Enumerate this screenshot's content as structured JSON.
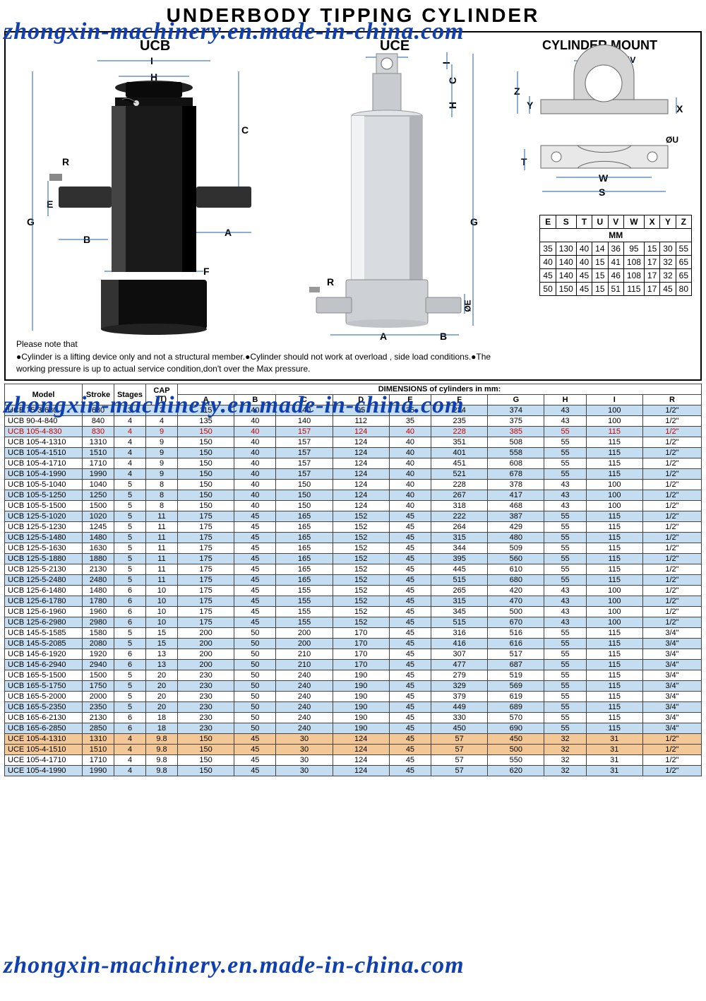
{
  "title": "UNDERBODY TIPPING CYLINDER",
  "watermark": "zhongxin-machinery.en.made-in-china.com",
  "labels": {
    "ucb": "UCB",
    "uce": "UCE",
    "mount": "CYLINDER MOUNT"
  },
  "dims": {
    "A": "A",
    "B": "B",
    "C": "C",
    "D": "D",
    "E": "E",
    "F": "F",
    "G": "G",
    "H": "H",
    "I": "I",
    "R": "R",
    "S": "S",
    "T": "T",
    "U": "U",
    "V": "V",
    "W": "W",
    "X": "X",
    "Y": "Y",
    "Z": "Z",
    "oE": "ØE",
    "oU": "ØU",
    "oV": "ØV"
  },
  "mountHeaders": [
    "E",
    "S",
    "T",
    "U",
    "V",
    "W",
    "X",
    "Y",
    "Z"
  ],
  "mountUnit": "MM",
  "mountRows": [
    [
      "35",
      "130",
      "40",
      "14",
      "36",
      "95",
      "15",
      "30",
      "55"
    ],
    [
      "40",
      "140",
      "40",
      "15",
      "41",
      "108",
      "17",
      "32",
      "65"
    ],
    [
      "45",
      "140",
      "45",
      "15",
      "46",
      "108",
      "17",
      "32",
      "65"
    ],
    [
      "50",
      "150",
      "45",
      "15",
      "51",
      "115",
      "17",
      "45",
      "80"
    ]
  ],
  "noteHead": "Please note that",
  "noteBody": "●Cylinder is a lifting device only and not a structural member.●Cylinder should not work at overload , side load conditions.●The working pressure is up to actual service condition,don't over the Max pressure.",
  "specHeaders1": [
    "Model",
    "Stroke",
    "Stages",
    "CAP (T)"
  ],
  "specDimHeader": "DIMENSIONS of cylinders in mm:",
  "specHeaders2": [
    "A",
    "B",
    "C",
    "D",
    "E",
    "F",
    "G",
    "H",
    "I",
    "R"
  ],
  "rows": [
    {
      "c": "blue",
      "d": [
        "UCB 75-3-630",
        "630",
        "3",
        "3",
        "115",
        "40",
        "140",
        "95",
        "35",
        "234",
        "374",
        "43",
        "100",
        "1/2\""
      ]
    },
    {
      "c": "white",
      "d": [
        "UCB 90-4-840",
        "840",
        "4",
        "4",
        "135",
        "40",
        "140",
        "112",
        "35",
        "235",
        "375",
        "43",
        "100",
        "1/2\""
      ]
    },
    {
      "c": "red",
      "d": [
        "UCB 105-4-830",
        "830",
        "4",
        "9",
        "150",
        "40",
        "157",
        "124",
        "40",
        "228",
        "385",
        "55",
        "115",
        "1/2\""
      ]
    },
    {
      "c": "white",
      "d": [
        "UCB 105-4-1310",
        "1310",
        "4",
        "9",
        "150",
        "40",
        "157",
        "124",
        "40",
        "351",
        "508",
        "55",
        "115",
        "1/2\""
      ]
    },
    {
      "c": "blue",
      "d": [
        "UCB 105-4-1510",
        "1510",
        "4",
        "9",
        "150",
        "40",
        "157",
        "124",
        "40",
        "401",
        "558",
        "55",
        "115",
        "1/2\""
      ]
    },
    {
      "c": "white",
      "d": [
        "UCB 105-4-1710",
        "1710",
        "4",
        "9",
        "150",
        "40",
        "157",
        "124",
        "40",
        "451",
        "608",
        "55",
        "115",
        "1/2\""
      ]
    },
    {
      "c": "blue",
      "d": [
        "UCB 105-4-1990",
        "1990",
        "4",
        "9",
        "150",
        "40",
        "157",
        "124",
        "40",
        "521",
        "678",
        "55",
        "115",
        "1/2\""
      ]
    },
    {
      "c": "white",
      "d": [
        "UCB 105-5-1040",
        "1040",
        "5",
        "8",
        "150",
        "40",
        "150",
        "124",
        "40",
        "228",
        "378",
        "43",
        "100",
        "1/2\""
      ]
    },
    {
      "c": "blue",
      "d": [
        "UCB 105-5-1250",
        "1250",
        "5",
        "8",
        "150",
        "40",
        "150",
        "124",
        "40",
        "267",
        "417",
        "43",
        "100",
        "1/2\""
      ]
    },
    {
      "c": "white",
      "d": [
        "UCB 105-5-1500",
        "1500",
        "5",
        "8",
        "150",
        "40",
        "150",
        "124",
        "40",
        "318",
        "468",
        "43",
        "100",
        "1/2\""
      ]
    },
    {
      "c": "blue",
      "d": [
        "UCB 125-5-1020",
        "1020",
        "5",
        "11",
        "175",
        "45",
        "165",
        "152",
        "45",
        "222",
        "387",
        "55",
        "115",
        "1/2\""
      ]
    },
    {
      "c": "white",
      "d": [
        "UCB 125-5-1230",
        "1245",
        "5",
        "11",
        "175",
        "45",
        "165",
        "152",
        "45",
        "264",
        "429",
        "55",
        "115",
        "1/2\""
      ]
    },
    {
      "c": "blue",
      "d": [
        "UCB 125-5-1480",
        "1480",
        "5",
        "11",
        "175",
        "45",
        "165",
        "152",
        "45",
        "315",
        "480",
        "55",
        "115",
        "1/2\""
      ]
    },
    {
      "c": "white",
      "d": [
        "UCB 125-5-1630",
        "1630",
        "5",
        "11",
        "175",
        "45",
        "165",
        "152",
        "45",
        "344",
        "509",
        "55",
        "115",
        "1/2\""
      ]
    },
    {
      "c": "blue",
      "d": [
        "UCB 125-5-1880",
        "1880",
        "5",
        "11",
        "175",
        "45",
        "165",
        "152",
        "45",
        "395",
        "560",
        "55",
        "115",
        "1/2\""
      ]
    },
    {
      "c": "white",
      "d": [
        "UCB 125-5-2130",
        "2130",
        "5",
        "11",
        "175",
        "45",
        "165",
        "152",
        "45",
        "445",
        "610",
        "55",
        "115",
        "1/2\""
      ]
    },
    {
      "c": "blue",
      "d": [
        "UCB 125-5-2480",
        "2480",
        "5",
        "11",
        "175",
        "45",
        "165",
        "152",
        "45",
        "515",
        "680",
        "55",
        "115",
        "1/2\""
      ]
    },
    {
      "c": "white",
      "d": [
        "UCB 125-6-1480",
        "1480",
        "6",
        "10",
        "175",
        "45",
        "155",
        "152",
        "45",
        "265",
        "420",
        "43",
        "100",
        "1/2\""
      ]
    },
    {
      "c": "blue",
      "d": [
        "UCB 125-6-1780",
        "1780",
        "6",
        "10",
        "175",
        "45",
        "155",
        "152",
        "45",
        "315",
        "470",
        "43",
        "100",
        "1/2\""
      ]
    },
    {
      "c": "white",
      "d": [
        "UCB 125-6-1960",
        "1960",
        "6",
        "10",
        "175",
        "45",
        "155",
        "152",
        "45",
        "345",
        "500",
        "43",
        "100",
        "1/2\""
      ]
    },
    {
      "c": "blue",
      "d": [
        "UCB 125-6-2980",
        "2980",
        "6",
        "10",
        "175",
        "45",
        "155",
        "152",
        "45",
        "515",
        "670",
        "43",
        "100",
        "1/2\""
      ]
    },
    {
      "c": "white",
      "d": [
        "UCB 145-5-1585",
        "1580",
        "5",
        "15",
        "200",
        "50",
        "200",
        "170",
        "45",
        "316",
        "516",
        "55",
        "115",
        "3/4\""
      ]
    },
    {
      "c": "blue",
      "d": [
        "UCB 145-5-2085",
        "2080",
        "5",
        "15",
        "200",
        "50",
        "200",
        "170",
        "45",
        "416",
        "616",
        "55",
        "115",
        "3/4\""
      ]
    },
    {
      "c": "white",
      "d": [
        "UCB 145-6-1920",
        "1920",
        "6",
        "13",
        "200",
        "50",
        "210",
        "170",
        "45",
        "307",
        "517",
        "55",
        "115",
        "3/4\""
      ]
    },
    {
      "c": "blue",
      "d": [
        "UCB 145-6-2940",
        "2940",
        "6",
        "13",
        "200",
        "50",
        "210",
        "170",
        "45",
        "477",
        "687",
        "55",
        "115",
        "3/4\""
      ]
    },
    {
      "c": "white",
      "d": [
        "UCB 165-5-1500",
        "1500",
        "5",
        "20",
        "230",
        "50",
        "240",
        "190",
        "45",
        "279",
        "519",
        "55",
        "115",
        "3/4\""
      ]
    },
    {
      "c": "blue",
      "d": [
        "UCB 165-5-1750",
        "1750",
        "5",
        "20",
        "230",
        "50",
        "240",
        "190",
        "45",
        "329",
        "569",
        "55",
        "115",
        "3/4\""
      ]
    },
    {
      "c": "white",
      "d": [
        "UCB 165-5-2000",
        "2000",
        "5",
        "20",
        "230",
        "50",
        "240",
        "190",
        "45",
        "379",
        "619",
        "55",
        "115",
        "3/4\""
      ]
    },
    {
      "c": "blue",
      "d": [
        "UCB 165-5-2350",
        "2350",
        "5",
        "20",
        "230",
        "50",
        "240",
        "190",
        "45",
        "449",
        "689",
        "55",
        "115",
        "3/4\""
      ]
    },
    {
      "c": "white",
      "d": [
        "UCB 165-6-2130",
        "2130",
        "6",
        "18",
        "230",
        "50",
        "240",
        "190",
        "45",
        "330",
        "570",
        "55",
        "115",
        "3/4\""
      ]
    },
    {
      "c": "blue",
      "d": [
        "UCB 165-6-2850",
        "2850",
        "6",
        "18",
        "230",
        "50",
        "240",
        "190",
        "45",
        "450",
        "690",
        "55",
        "115",
        "3/4\""
      ]
    },
    {
      "c": "orange",
      "d": [
        "UCE 105-4-1310",
        "1310",
        "4",
        "9.8",
        "150",
        "45",
        "30",
        "124",
        "45",
        "57",
        "450",
        "32",
        "31",
        "1/2\""
      ]
    },
    {
      "c": "orange",
      "d": [
        "UCE 105-4-1510",
        "1510",
        "4",
        "9.8",
        "150",
        "45",
        "30",
        "124",
        "45",
        "57",
        "500",
        "32",
        "31",
        "1/2\""
      ]
    },
    {
      "c": "white",
      "d": [
        "UCE 105-4-1710",
        "1710",
        "4",
        "9.8",
        "150",
        "45",
        "30",
        "124",
        "45",
        "57",
        "550",
        "32",
        "31",
        "1/2\""
      ]
    },
    {
      "c": "blue",
      "d": [
        "UCE 105-4-1990",
        "1990",
        "4",
        "9.8",
        "150",
        "45",
        "30",
        "124",
        "45",
        "57",
        "620",
        "32",
        "31",
        "1/2\""
      ]
    }
  ]
}
